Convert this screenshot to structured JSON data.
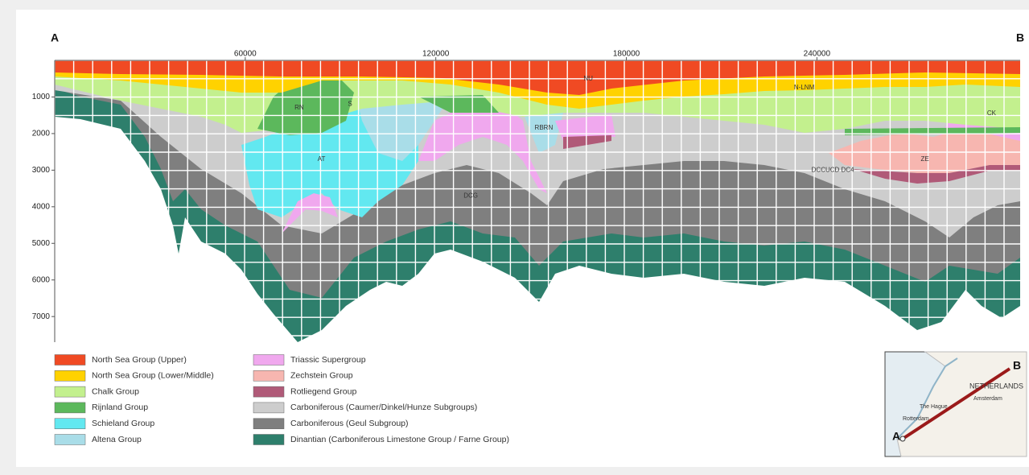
{
  "section": {
    "end_labels": [
      "A",
      "B"
    ],
    "xlim": [
      0,
      304000
    ],
    "ylim": [
      0,
      7700
    ],
    "xticks": [
      60000,
      120000,
      180000,
      240000
    ],
    "yticks": [
      1000,
      2000,
      3000,
      4000,
      5000,
      6000,
      7000
    ],
    "unit_labels": [
      {
        "text": "NU",
        "x": 168000,
        "y": 500
      },
      {
        "text": "N-LNM",
        "x": 236000,
        "y": 750
      },
      {
        "text": "CK",
        "x": 295000,
        "y": 1450
      },
      {
        "text": "RN",
        "x": 77000,
        "y": 1300
      },
      {
        "text": "S",
        "x": 93000,
        "y": 1200
      },
      {
        "text": "AT",
        "x": 84000,
        "y": 2700
      },
      {
        "text": "RBRN",
        "x": 154000,
        "y": 1850
      },
      {
        "text": "ZE",
        "x": 274000,
        "y": 2700
      },
      {
        "text": "DCCUCD DC4",
        "x": 245000,
        "y": 3000
      },
      {
        "text": "DCG",
        "x": 131000,
        "y": 3700
      }
    ]
  },
  "legend": [
    {
      "label": "North Sea Group (Upper)",
      "color": "#f04a23"
    },
    {
      "label": "North Sea Group (Lower/Middle)",
      "color": "#ffd200"
    },
    {
      "label": "Chalk Group",
      "color": "#c3f08e"
    },
    {
      "label": "Rijnland Group",
      "color": "#5cb85c"
    },
    {
      "label": "Schieland Group",
      "color": "#62e8f0"
    },
    {
      "label": "Altena Group",
      "color": "#a9dde8"
    },
    {
      "label": "Triassic Supergroup",
      "color": "#f0a8ee"
    },
    {
      "label": "Zechstein Group",
      "color": "#f7b6b0"
    },
    {
      "label": "Rotliegend Group",
      "color": "#b05a78"
    },
    {
      "label": "Carboniferous (Caumer/Dinkel/Hunze Subgroups)",
      "color": "#cdcdcd"
    },
    {
      "label": "Carboniferous (Geul Subgroup)",
      "color": "#7f7f7f"
    },
    {
      "label": "Dinantian (Carboniferous Limestone Group / Farne Group)",
      "color": "#2e7f6c"
    }
  ],
  "map": {
    "start": "A",
    "end": "B",
    "places": [
      "NETHERLANDS",
      "Amsterdam",
      "The Hague",
      "Rotterdam"
    ]
  }
}
